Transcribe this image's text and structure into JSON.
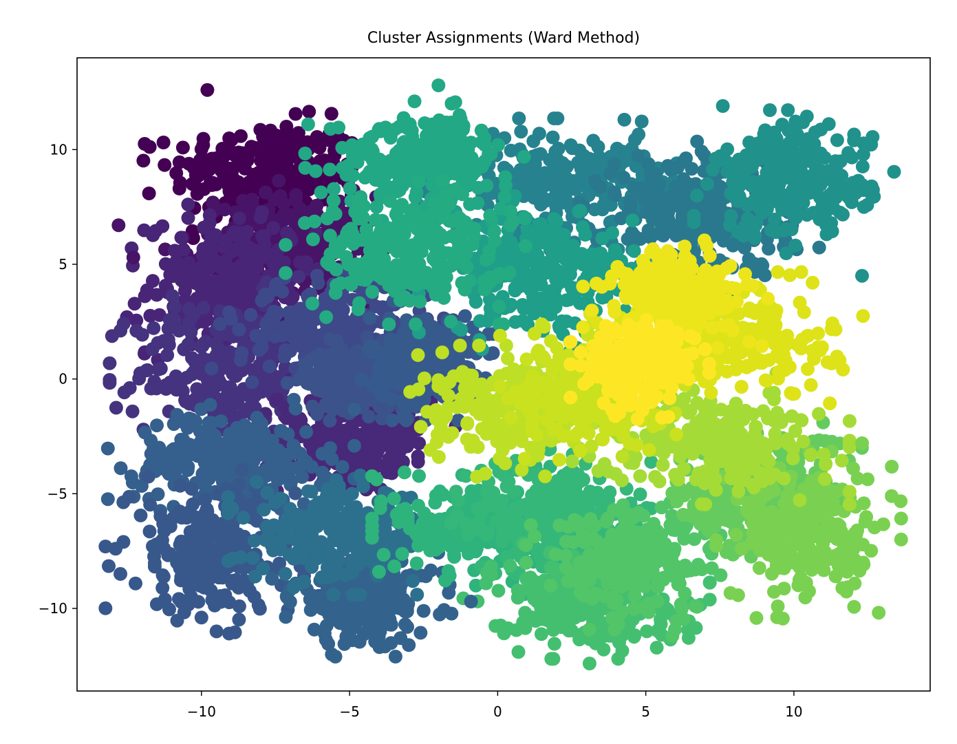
{
  "chart_data": {
    "type": "scatter",
    "title": "Cluster Assignments (Ward Method)",
    "xlabel": "",
    "ylabel": "",
    "xlim": [
      -14.2,
      14.6
    ],
    "ylim": [
      -13.6,
      14.0
    ],
    "xticks": [
      -10,
      -5,
      0,
      5,
      10
    ],
    "yticks": [
      -10,
      -5,
      0,
      5,
      10
    ],
    "xtick_labels": [
      "−10",
      "−5",
      "0",
      "5",
      "10"
    ],
    "ytick_labels": [
      "−10",
      "−5",
      "0",
      "5",
      "10"
    ],
    "grid": false,
    "legend": "none",
    "colormap": "viridis",
    "marker_radius_px": 10,
    "clusters": [
      {
        "id": 0,
        "color": "#440154",
        "center": [
          -7.8,
          9.0
        ],
        "spread": [
          1.6,
          1.1
        ]
      },
      {
        "id": 1,
        "color": "#481467",
        "center": [
          -7.2,
          5.6
        ],
        "spread": [
          1.6,
          1.2
        ]
      },
      {
        "id": 2,
        "color": "#482576",
        "center": [
          -9.0,
          4.0
        ],
        "spread": [
          1.4,
          1.5
        ]
      },
      {
        "id": 3,
        "color": "#45337f",
        "center": [
          -9.2,
          0.3
        ],
        "spread": [
          1.5,
          1.6
        ]
      },
      {
        "id": 4,
        "color": "#482878",
        "center": [
          -4.8,
          -2.5
        ],
        "spread": [
          1.3,
          1.0
        ]
      },
      {
        "id": 5,
        "color": "#3e4989",
        "center": [
          -5.5,
          2.3
        ],
        "spread": [
          1.6,
          1.0
        ]
      },
      {
        "id": 6,
        "color": "#3b528b",
        "center": [
          -4.5,
          0.0
        ],
        "spread": [
          1.0,
          0.7
        ]
      },
      {
        "id": 7,
        "color": "#375a8c",
        "center": [
          -2.5,
          0.8
        ],
        "spread": [
          0.9,
          1.0
        ]
      },
      {
        "id": 8,
        "color": "#355f8d",
        "center": [
          -9.0,
          -3.5
        ],
        "spread": [
          1.6,
          1.0
        ]
      },
      {
        "id": 9,
        "color": "#38588c",
        "center": [
          -9.6,
          -7.6
        ],
        "spread": [
          1.4,
          1.4
        ]
      },
      {
        "id": 10,
        "color": "#33638d",
        "center": [
          -4.5,
          -9.5
        ],
        "spread": [
          1.2,
          1.0
        ]
      },
      {
        "id": 11,
        "color": "#2d708e",
        "center": [
          -5.2,
          -6.8
        ],
        "spread": [
          1.5,
          1.0
        ]
      },
      {
        "id": 12,
        "color": "#26828e",
        "center": [
          2.5,
          8.5
        ],
        "spread": [
          2.0,
          1.1
        ]
      },
      {
        "id": 13,
        "color": "#2a788e",
        "center": [
          6.8,
          7.2
        ],
        "spread": [
          1.6,
          1.3
        ]
      },
      {
        "id": 14,
        "color": "#21918c",
        "center": [
          10.0,
          8.6
        ],
        "spread": [
          1.3,
          1.2
        ]
      },
      {
        "id": 15,
        "color": "#1f9e89",
        "center": [
          1.5,
          4.6
        ],
        "spread": [
          1.6,
          1.3
        ]
      },
      {
        "id": 16,
        "color": "#22a884",
        "center": [
          -2.6,
          9.5
        ],
        "spread": [
          1.5,
          1.0
        ]
      },
      {
        "id": 17,
        "color": "#25ab82",
        "center": [
          -3.0,
          5.5
        ],
        "spread": [
          1.6,
          1.2
        ]
      },
      {
        "id": 18,
        "color": "#2eb37c",
        "center": [
          -0.6,
          -6.4
        ],
        "spread": [
          1.4,
          1.0
        ]
      },
      {
        "id": 19,
        "color": "#35b779",
        "center": [
          1.8,
          -6.0
        ],
        "spread": [
          1.3,
          1.3
        ]
      },
      {
        "id": 20,
        "color": "#44bf70",
        "center": [
          3.0,
          -9.6
        ],
        "spread": [
          1.6,
          1.0
        ]
      },
      {
        "id": 21,
        "color": "#52c569",
        "center": [
          4.6,
          -7.8
        ],
        "spread": [
          1.4,
          1.2
        ]
      },
      {
        "id": 22,
        "color": "#65cb5e",
        "center": [
          9.0,
          -5.0
        ],
        "spread": [
          1.4,
          1.3
        ]
      },
      {
        "id": 23,
        "color": "#7ad151",
        "center": [
          10.5,
          -6.8
        ],
        "spread": [
          1.2,
          1.4
        ]
      },
      {
        "id": 24,
        "color": "#a5db36",
        "center": [
          7.2,
          -2.6
        ],
        "spread": [
          1.8,
          1.1
        ]
      },
      {
        "id": 25,
        "color": "#bddf26",
        "center": [
          0.8,
          -1.4
        ],
        "spread": [
          1.7,
          1.1
        ]
      },
      {
        "id": 26,
        "color": "#cae11f",
        "center": [
          3.2,
          -0.4
        ],
        "spread": [
          1.2,
          1.2
        ]
      },
      {
        "id": 27,
        "color": "#dde318",
        "center": [
          7.8,
          1.8
        ],
        "spread": [
          1.8,
          1.1
        ]
      },
      {
        "id": 28,
        "color": "#ece51b",
        "center": [
          6.0,
          3.7
        ],
        "spread": [
          1.2,
          0.9
        ]
      },
      {
        "id": 29,
        "color": "#fde725",
        "center": [
          4.8,
          0.6
        ],
        "spread": [
          0.9,
          0.9
        ]
      }
    ],
    "outliers": [
      {
        "x": -9.8,
        "y": 12.6,
        "cluster": 0
      },
      {
        "x": -2.0,
        "y": 12.8,
        "cluster": 16
      },
      {
        "x": 7.6,
        "y": 11.9,
        "cluster": 14
      },
      {
        "x": -12.8,
        "y": 6.7,
        "cluster": 1
      },
      {
        "x": -12.3,
        "y": 5.3,
        "cluster": 1
      },
      {
        "x": -12.9,
        "y": -7.4,
        "cluster": 9
      },
      {
        "x": -10.0,
        "y": -10.4,
        "cluster": 9
      },
      {
        "x": -5.6,
        "y": -12.0,
        "cluster": 10
      },
      {
        "x": -3.0,
        "y": -11.6,
        "cluster": 10
      },
      {
        "x": 3.1,
        "y": -12.4,
        "cluster": 20
      },
      {
        "x": 5.9,
        "y": -11.2,
        "cluster": 21
      },
      {
        "x": 13.3,
        "y": -5.1,
        "cluster": 23
      },
      {
        "x": 12.3,
        "y": 4.5,
        "cluster": 14
      },
      {
        "x": 12.3,
        "y": -2.8,
        "cluster": 23
      },
      {
        "x": 12.0,
        "y": -3.9,
        "cluster": 23
      },
      {
        "x": 0.7,
        "y": -11.9,
        "cluster": 20
      },
      {
        "x": -0.9,
        "y": -9.7,
        "cluster": 10
      }
    ]
  }
}
